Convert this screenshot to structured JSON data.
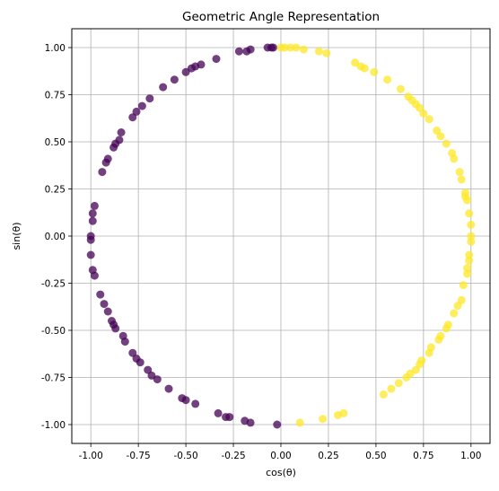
{
  "chart_data": {
    "type": "scatter",
    "title": "Geometric Angle Representation",
    "xlabel": "cos(θ)",
    "ylabel": "sin(θ)",
    "xlim": [
      -1.1,
      1.1
    ],
    "ylim": [
      -1.1,
      1.1
    ],
    "grid": true,
    "xticks": [
      "-1.00",
      "-0.75",
      "-0.50",
      "-0.25",
      "0.00",
      "0.25",
      "0.50",
      "0.75",
      "1.00"
    ],
    "yticks": [
      "-1.00",
      "-0.75",
      "-0.50",
      "-0.25",
      "0.00",
      "0.25",
      "0.50",
      "0.75",
      "1.00"
    ],
    "marker_alpha": 0.75,
    "colormap": "viridis",
    "colors": {
      "positive_x": "#fde725",
      "negative_x": "#440154"
    },
    "points": [
      {
        "x": -1.0,
        "y": 0.0
      },
      {
        "x": -1.0,
        "y": -0.02
      },
      {
        "x": -0.99,
        "y": 0.08
      },
      {
        "x": -0.99,
        "y": 0.12
      },
      {
        "x": -0.98,
        "y": 0.16
      },
      {
        "x": -1.0,
        "y": -0.1
      },
      {
        "x": -0.99,
        "y": -0.18
      },
      {
        "x": -0.98,
        "y": -0.21
      },
      {
        "x": -0.94,
        "y": 0.34
      },
      {
        "x": -0.92,
        "y": 0.39
      },
      {
        "x": -0.91,
        "y": 0.41
      },
      {
        "x": -0.88,
        "y": 0.47
      },
      {
        "x": -0.87,
        "y": 0.49
      },
      {
        "x": -0.85,
        "y": 0.51
      },
      {
        "x": -0.84,
        "y": 0.55
      },
      {
        "x": -0.78,
        "y": 0.63
      },
      {
        "x": -0.76,
        "y": 0.66
      },
      {
        "x": -0.73,
        "y": 0.69
      },
      {
        "x": -0.69,
        "y": 0.73
      },
      {
        "x": -0.62,
        "y": 0.79
      },
      {
        "x": -0.56,
        "y": 0.83
      },
      {
        "x": -0.5,
        "y": 0.87
      },
      {
        "x": -0.47,
        "y": 0.89
      },
      {
        "x": -0.45,
        "y": 0.9
      },
      {
        "x": -0.42,
        "y": 0.91
      },
      {
        "x": -0.34,
        "y": 0.94
      },
      {
        "x": -0.22,
        "y": 0.98
      },
      {
        "x": -0.18,
        "y": 0.98
      },
      {
        "x": -0.16,
        "y": 0.99
      },
      {
        "x": -0.07,
        "y": 1.0
      },
      {
        "x": -0.05,
        "y": 1.0
      },
      {
        "x": -0.04,
        "y": 1.0
      },
      {
        "x": -0.95,
        "y": -0.31
      },
      {
        "x": -0.93,
        "y": -0.36
      },
      {
        "x": -0.91,
        "y": -0.4
      },
      {
        "x": -0.89,
        "y": -0.45
      },
      {
        "x": -0.88,
        "y": -0.47
      },
      {
        "x": -0.87,
        "y": -0.49
      },
      {
        "x": -0.83,
        "y": -0.53
      },
      {
        "x": -0.82,
        "y": -0.56
      },
      {
        "x": -0.78,
        "y": -0.62
      },
      {
        "x": -0.76,
        "y": -0.65
      },
      {
        "x": -0.74,
        "y": -0.67
      },
      {
        "x": -0.7,
        "y": -0.71
      },
      {
        "x": -0.68,
        "y": -0.74
      },
      {
        "x": -0.65,
        "y": -0.76
      },
      {
        "x": -0.59,
        "y": -0.81
      },
      {
        "x": -0.52,
        "y": -0.86
      },
      {
        "x": -0.5,
        "y": -0.87
      },
      {
        "x": -0.45,
        "y": -0.89
      },
      {
        "x": -0.33,
        "y": -0.94
      },
      {
        "x": -0.29,
        "y": -0.96
      },
      {
        "x": -0.27,
        "y": -0.96
      },
      {
        "x": -0.19,
        "y": -0.98
      },
      {
        "x": -0.16,
        "y": -0.99
      },
      {
        "x": -0.02,
        "y": -1.0
      },
      {
        "x": 0.0,
        "y": 1.0
      },
      {
        "x": 0.02,
        "y": 1.0
      },
      {
        "x": 0.05,
        "y": 1.0
      },
      {
        "x": 0.08,
        "y": 1.0
      },
      {
        "x": 0.12,
        "y": 0.99
      },
      {
        "x": 0.2,
        "y": 0.98
      },
      {
        "x": 0.24,
        "y": 0.97
      },
      {
        "x": 0.39,
        "y": 0.92
      },
      {
        "x": 0.42,
        "y": 0.9
      },
      {
        "x": 0.44,
        "y": 0.89
      },
      {
        "x": 0.49,
        "y": 0.87
      },
      {
        "x": 0.56,
        "y": 0.83
      },
      {
        "x": 0.63,
        "y": 0.78
      },
      {
        "x": 0.67,
        "y": 0.74
      },
      {
        "x": 0.69,
        "y": 0.72
      },
      {
        "x": 0.71,
        "y": 0.7
      },
      {
        "x": 0.73,
        "y": 0.68
      },
      {
        "x": 0.75,
        "y": 0.65
      },
      {
        "x": 0.78,
        "y": 0.62
      },
      {
        "x": 0.82,
        "y": 0.56
      },
      {
        "x": 0.84,
        "y": 0.53
      },
      {
        "x": 0.87,
        "y": 0.49
      },
      {
        "x": 0.9,
        "y": 0.44
      },
      {
        "x": 0.91,
        "y": 0.41
      },
      {
        "x": 0.94,
        "y": 0.34
      },
      {
        "x": 0.95,
        "y": 0.3
      },
      {
        "x": 0.97,
        "y": 0.23
      },
      {
        "x": 0.97,
        "y": 0.21
      },
      {
        "x": 0.98,
        "y": 0.19
      },
      {
        "x": 0.99,
        "y": 0.12
      },
      {
        "x": 1.0,
        "y": 0.06
      },
      {
        "x": 1.0,
        "y": 0.0
      },
      {
        "x": 1.0,
        "y": -0.03
      },
      {
        "x": 0.99,
        "y": -0.1
      },
      {
        "x": 0.99,
        "y": -0.13
      },
      {
        "x": 0.98,
        "y": -0.17
      },
      {
        "x": 0.98,
        "y": -0.2
      },
      {
        "x": 0.96,
        "y": -0.26
      },
      {
        "x": 0.95,
        "y": -0.34
      },
      {
        "x": 0.93,
        "y": -0.37
      },
      {
        "x": 0.91,
        "y": -0.41
      },
      {
        "x": 0.88,
        "y": -0.47
      },
      {
        "x": 0.87,
        "y": -0.49
      },
      {
        "x": 0.84,
        "y": -0.53
      },
      {
        "x": 0.83,
        "y": -0.55
      },
      {
        "x": 0.79,
        "y": -0.59
      },
      {
        "x": 0.78,
        "y": -0.62
      },
      {
        "x": 0.74,
        "y": -0.66
      },
      {
        "x": 0.73,
        "y": -0.68
      },
      {
        "x": 0.71,
        "y": -0.71
      },
      {
        "x": 0.68,
        "y": -0.73
      },
      {
        "x": 0.66,
        "y": -0.75
      },
      {
        "x": 0.62,
        "y": -0.78
      },
      {
        "x": 0.58,
        "y": -0.81
      },
      {
        "x": 0.54,
        "y": -0.84
      },
      {
        "x": 0.33,
        "y": -0.94
      },
      {
        "x": 0.3,
        "y": -0.95
      },
      {
        "x": 0.22,
        "y": -0.97
      },
      {
        "x": 0.1,
        "y": -0.99
      }
    ]
  }
}
